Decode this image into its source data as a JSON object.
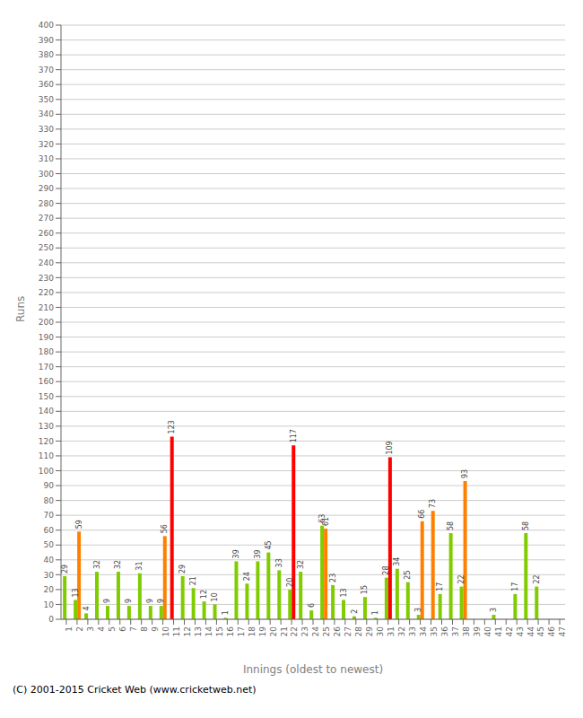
{
  "chart_data": {
    "type": "bar",
    "xlabel": "Innings (oldest to newest)",
    "ylabel": "Runs",
    "footer": "(C) 2001-2015 Cricket Web (www.cricketweb.net)",
    "categories": [
      "1",
      "2",
      "3",
      "4",
      "5",
      "6",
      "7",
      "8",
      "9",
      "10",
      "11",
      "12",
      "13",
      "14",
      "15",
      "16",
      "17",
      "18",
      "19",
      "20",
      "21",
      "22",
      "23",
      "24",
      "25",
      "26",
      "27",
      "28",
      "29",
      "30",
      "31",
      "32",
      "33",
      "34",
      "35",
      "36",
      "37",
      "38",
      "39",
      "40",
      "41",
      "42",
      "43",
      "44",
      "45",
      "46",
      "47"
    ],
    "series": [
      {
        "color": "#80cc00",
        "values": [
          29,
          13,
          4,
          32,
          9,
          32,
          9,
          31,
          9,
          9,
          123,
          29,
          21,
          12,
          10,
          1,
          39,
          24,
          39,
          45,
          33,
          20,
          32,
          6,
          63,
          23,
          13,
          2,
          15,
          1,
          28,
          34,
          25,
          3,
          0,
          17,
          58,
          22,
          0,
          0,
          3,
          0,
          17,
          58,
          22,
          0,
          0
        ],
        "colors": [
          "#80cc00",
          "#80cc00",
          "#80cc00",
          "#80cc00",
          "#80cc00",
          "#80cc00",
          "#80cc00",
          "#80cc00",
          "#80cc00",
          "#80cc00",
          "#ff0000",
          "#80cc00",
          "#80cc00",
          "#80cc00",
          "#80cc00",
          "#80cc00",
          "#80cc00",
          "#80cc00",
          "#80cc00",
          "#80cc00",
          "#80cc00",
          "#80cc00",
          "#80cc00",
          "#80cc00",
          "#80cc00",
          "#80cc00",
          "#80cc00",
          "#80cc00",
          "#80cc00",
          "#80cc00",
          "#80cc00",
          "#80cc00",
          "#80cc00",
          "#80cc00",
          "#80cc00",
          "#80cc00",
          "#80cc00",
          "#80cc00",
          "#80cc00",
          "#80cc00",
          "#80cc00",
          "#80cc00",
          "#80cc00",
          "#80cc00",
          "#80cc00",
          "#80cc00",
          "#80cc00"
        ]
      },
      {
        "color": "#ff8000",
        "values": [
          null,
          59,
          null,
          null,
          null,
          null,
          null,
          null,
          null,
          56,
          null,
          null,
          null,
          null,
          null,
          null,
          null,
          null,
          null,
          null,
          null,
          117,
          null,
          null,
          61,
          null,
          null,
          null,
          null,
          null,
          109,
          null,
          null,
          66,
          73,
          null,
          null,
          93,
          null,
          null,
          null,
          null,
          null,
          null,
          null,
          null,
          null
        ],
        "colors": [
          "#ff8000",
          "#ff8000",
          "#ff8000",
          "#ff8000",
          "#ff8000",
          "#ff8000",
          "#ff8000",
          "#ff8000",
          "#ff8000",
          "#ff8000",
          "#ff8000",
          "#ff8000",
          "#ff8000",
          "#ff8000",
          "#ff8000",
          "#ff8000",
          "#ff8000",
          "#ff8000",
          "#ff8000",
          "#ff8000",
          "#ff8000",
          "#ff0000",
          "#ff8000",
          "#ff8000",
          "#ff8000",
          "#ff8000",
          "#ff8000",
          "#ff8000",
          "#ff8000",
          "#ff8000",
          "#ff0000",
          "#ff8000",
          "#ff8000",
          "#ff8000",
          "#ff8000",
          "#ff8000",
          "#ff8000",
          "#ff8000",
          "#ff8000",
          "#ff8000",
          "#ff8000",
          "#ff8000",
          "#ff8000",
          "#ff8000",
          "#ff8000",
          "#ff8000",
          "#ff8000"
        ]
      }
    ],
    "ylim": [
      0,
      400
    ],
    "yticks": [
      0,
      10,
      20,
      30,
      40,
      50,
      60,
      70,
      80,
      90,
      100,
      110,
      120,
      130,
      140,
      150,
      160,
      170,
      180,
      190,
      200,
      210,
      220,
      230,
      240,
      250,
      260,
      270,
      280,
      290,
      300,
      310,
      320,
      330,
      340,
      350,
      360,
      370,
      380,
      390,
      400
    ],
    "grid": true,
    "data_labels": true
  }
}
